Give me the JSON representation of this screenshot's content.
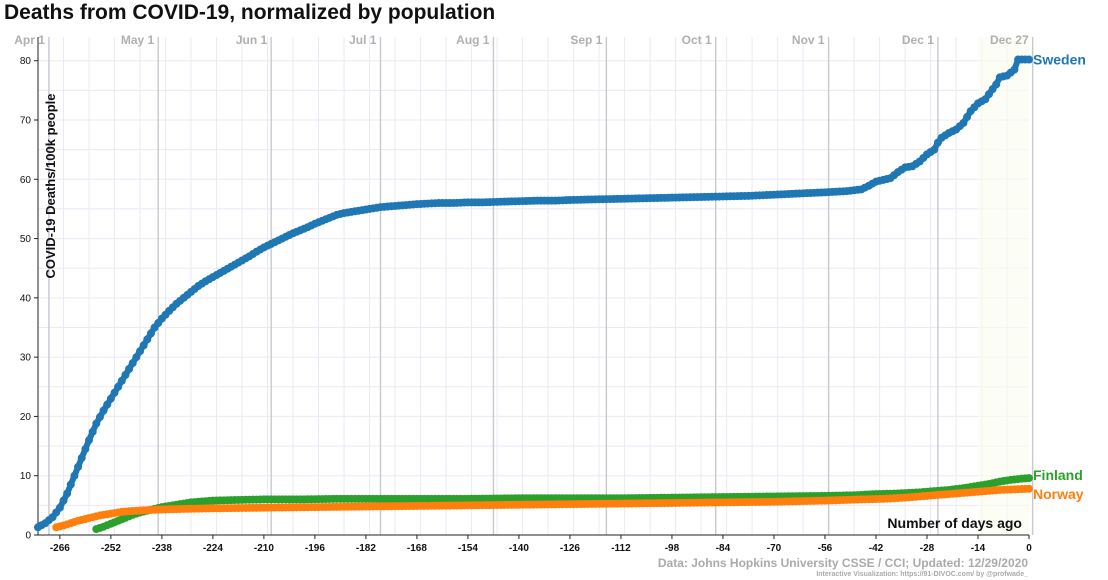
{
  "title": "Deaths from COVID-19, normalized by population",
  "source": "Data: Johns Hopkins University CSSE / CCI; Updated: 12/29/2020",
  "credit": "Interactive Visualization: https://91-DIVOC.com/ by @profwade_",
  "chart_data": {
    "type": "scatter",
    "title": "Deaths from COVID-19, normalized by population",
    "xlabel": "Number of days ago",
    "ylabel": "COVID-19 Deaths/100k people",
    "xlim": [
      -272,
      0
    ],
    "ylim": [
      0,
      84
    ],
    "xticks": [
      -266,
      -252,
      -238,
      -224,
      -210,
      -196,
      -182,
      -168,
      -154,
      -140,
      -126,
      -112,
      -98,
      -84,
      -70,
      -56,
      -42,
      -28,
      -14,
      0
    ],
    "yticks": [
      0,
      10,
      20,
      30,
      40,
      50,
      60,
      70,
      80
    ],
    "month_labels": [
      {
        "label": "Apr 1",
        "x": -269
      },
      {
        "label": "May 1",
        "x": -239
      },
      {
        "label": "Jun 1",
        "x": -208
      },
      {
        "label": "Jul 1",
        "x": -178
      },
      {
        "label": "Aug 1",
        "x": -147
      },
      {
        "label": "Sep 1",
        "x": -116
      },
      {
        "label": "Oct 1",
        "x": -86
      },
      {
        "label": "Nov 1",
        "x": -55
      },
      {
        "label": "Dec 1",
        "x": -25
      },
      {
        "label": "Dec 27",
        "x": 1
      }
    ],
    "grid": true,
    "series": [
      {
        "name": "Sweden",
        "color": "#1f77b4",
        "points": [
          [
            -272,
            1.3
          ],
          [
            -270,
            2.0
          ],
          [
            -268,
            3.0
          ],
          [
            -266,
            4.6
          ],
          [
            -264,
            7.0
          ],
          [
            -262,
            10.0
          ],
          [
            -260,
            13.0
          ],
          [
            -258,
            16.0
          ],
          [
            -256,
            18.8
          ],
          [
            -254,
            21.0
          ],
          [
            -252,
            23.0
          ],
          [
            -250,
            25.0
          ],
          [
            -248,
            27.0
          ],
          [
            -246,
            29.0
          ],
          [
            -244,
            31.0
          ],
          [
            -242,
            33.0
          ],
          [
            -240,
            35.0
          ],
          [
            -238,
            36.5
          ],
          [
            -236,
            37.8
          ],
          [
            -234,
            39.0
          ],
          [
            -232,
            40.0
          ],
          [
            -230,
            41.0
          ],
          [
            -228,
            42.0
          ],
          [
            -226,
            42.8
          ],
          [
            -224,
            43.5
          ],
          [
            -222,
            44.2
          ],
          [
            -220,
            44.9
          ],
          [
            -218,
            45.6
          ],
          [
            -216,
            46.3
          ],
          [
            -214,
            47.0
          ],
          [
            -212,
            47.8
          ],
          [
            -210,
            48.5
          ],
          [
            -208,
            49.1
          ],
          [
            -206,
            49.7
          ],
          [
            -204,
            50.3
          ],
          [
            -202,
            50.9
          ],
          [
            -200,
            51.4
          ],
          [
            -198,
            51.9
          ],
          [
            -196,
            52.5
          ],
          [
            -194,
            53.0
          ],
          [
            -192,
            53.5
          ],
          [
            -190,
            54.0
          ],
          [
            -188,
            54.3
          ],
          [
            -186,
            54.5
          ],
          [
            -184,
            54.7
          ],
          [
            -182,
            54.9
          ],
          [
            -180,
            55.1
          ],
          [
            -178,
            55.3
          ],
          [
            -176,
            55.4
          ],
          [
            -174,
            55.5
          ],
          [
            -172,
            55.6
          ],
          [
            -170,
            55.7
          ],
          [
            -168,
            55.8
          ],
          [
            -165,
            55.9
          ],
          [
            -162,
            56.0
          ],
          [
            -158,
            56.0
          ],
          [
            -154,
            56.1
          ],
          [
            -150,
            56.1
          ],
          [
            -146,
            56.2
          ],
          [
            -140,
            56.3
          ],
          [
            -135,
            56.4
          ],
          [
            -130,
            56.4
          ],
          [
            -126,
            56.5
          ],
          [
            -120,
            56.6
          ],
          [
            -112,
            56.7
          ],
          [
            -105,
            56.8
          ],
          [
            -98,
            56.9
          ],
          [
            -91,
            57.0
          ],
          [
            -84,
            57.1
          ],
          [
            -77,
            57.2
          ],
          [
            -70,
            57.4
          ],
          [
            -63,
            57.6
          ],
          [
            -56,
            57.8
          ],
          [
            -50,
            58.0
          ],
          [
            -46,
            58.3
          ],
          [
            -44,
            58.9
          ],
          [
            -42,
            59.6
          ],
          [
            -40,
            59.9
          ],
          [
            -38,
            60.2
          ],
          [
            -36,
            61.2
          ],
          [
            -34,
            62.0
          ],
          [
            -32,
            62.2
          ],
          [
            -30,
            63.0
          ],
          [
            -28,
            64.2
          ],
          [
            -26,
            65.0
          ],
          [
            -25,
            66.2
          ],
          [
            -24,
            67.0
          ],
          [
            -22,
            67.8
          ],
          [
            -20,
            68.4
          ],
          [
            -18,
            69.5
          ],
          [
            -16,
            71.5
          ],
          [
            -14,
            72.8
          ],
          [
            -12,
            73.5
          ],
          [
            -10,
            75.2
          ],
          [
            -9,
            76.0
          ],
          [
            -8,
            77.2
          ],
          [
            -6,
            77.5
          ],
          [
            -4,
            78.5
          ],
          [
            -3,
            80.2
          ],
          [
            -2,
            80.2
          ],
          [
            0,
            80.2
          ]
        ]
      },
      {
        "name": "Finland",
        "color": "#2ca02c",
        "points": [
          [
            -256,
            1.0
          ],
          [
            -254,
            1.4
          ],
          [
            -252,
            1.9
          ],
          [
            -250,
            2.4
          ],
          [
            -248,
            2.9
          ],
          [
            -246,
            3.4
          ],
          [
            -244,
            3.8
          ],
          [
            -242,
            4.1
          ],
          [
            -240,
            4.4
          ],
          [
            -238,
            4.7
          ],
          [
            -236,
            4.9
          ],
          [
            -234,
            5.1
          ],
          [
            -232,
            5.3
          ],
          [
            -230,
            5.5
          ],
          [
            -228,
            5.6
          ],
          [
            -226,
            5.7
          ],
          [
            -224,
            5.8
          ],
          [
            -218,
            5.9
          ],
          [
            -210,
            6.0
          ],
          [
            -200,
            6.0
          ],
          [
            -190,
            6.1
          ],
          [
            -180,
            6.1
          ],
          [
            -168,
            6.1
          ],
          [
            -154,
            6.1
          ],
          [
            -140,
            6.2
          ],
          [
            -126,
            6.2
          ],
          [
            -112,
            6.2
          ],
          [
            -98,
            6.3
          ],
          [
            -84,
            6.4
          ],
          [
            -70,
            6.5
          ],
          [
            -56,
            6.6
          ],
          [
            -48,
            6.7
          ],
          [
            -42,
            6.9
          ],
          [
            -36,
            7.0
          ],
          [
            -30,
            7.2
          ],
          [
            -26,
            7.4
          ],
          [
            -22,
            7.6
          ],
          [
            -18,
            7.9
          ],
          [
            -14,
            8.3
          ],
          [
            -11,
            8.6
          ],
          [
            -8,
            9.0
          ],
          [
            -5,
            9.3
          ],
          [
            -2,
            9.5
          ],
          [
            0,
            9.6
          ]
        ]
      },
      {
        "name": "Norway",
        "color": "#ff7f0e",
        "points": [
          [
            -267,
            1.3
          ],
          [
            -265,
            1.6
          ],
          [
            -263,
            2.0
          ],
          [
            -261,
            2.4
          ],
          [
            -259,
            2.7
          ],
          [
            -257,
            3.0
          ],
          [
            -255,
            3.3
          ],
          [
            -253,
            3.5
          ],
          [
            -251,
            3.7
          ],
          [
            -249,
            3.9
          ],
          [
            -247,
            4.0
          ],
          [
            -245,
            4.1
          ],
          [
            -242,
            4.2
          ],
          [
            -238,
            4.3
          ],
          [
            -232,
            4.4
          ],
          [
            -224,
            4.5
          ],
          [
            -210,
            4.6
          ],
          [
            -196,
            4.7
          ],
          [
            -182,
            4.8
          ],
          [
            -168,
            4.9
          ],
          [
            -154,
            5.0
          ],
          [
            -140,
            5.1
          ],
          [
            -126,
            5.2
          ],
          [
            -112,
            5.3
          ],
          [
            -98,
            5.4
          ],
          [
            -84,
            5.5
          ],
          [
            -70,
            5.6
          ],
          [
            -56,
            5.8
          ],
          [
            -46,
            6.0
          ],
          [
            -40,
            6.1
          ],
          [
            -34,
            6.3
          ],
          [
            -28,
            6.6
          ],
          [
            -22,
            6.9
          ],
          [
            -16,
            7.2
          ],
          [
            -12,
            7.4
          ],
          [
            -8,
            7.6
          ],
          [
            -4,
            7.7
          ],
          [
            0,
            7.8
          ]
        ]
      }
    ]
  }
}
